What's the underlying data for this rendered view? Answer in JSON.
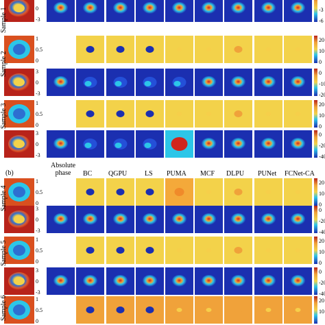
{
  "panel_b_label": "(b)",
  "column_headers": [
    "Absolute\nphase",
    "BC",
    "QGPU",
    "LS",
    "PUMA",
    "MCF",
    "DLPU",
    "PUNet",
    "FCNet-CA"
  ],
  "samples": [
    "Sample 1",
    "Sample 2",
    "Sample 3",
    "Sample 4",
    "Sample 5",
    "Sample 6"
  ],
  "left_ticks_amp": [
    "3",
    "0",
    "-3"
  ],
  "left_ticks_err": [
    "1",
    "0.5",
    "0"
  ],
  "right_ticks": [
    [
      "",
      "-3",
      "-6"
    ],
    [
      "20",
      "10",
      "0"
    ],
    [
      "0",
      "-10",
      "-20"
    ],
    [
      "20",
      "10",
      "0"
    ],
    [
      "0",
      "-20",
      "-40"
    ],
    [
      "20",
      "10",
      "0"
    ],
    [
      "0",
      "-20",
      "-40"
    ],
    [
      "20",
      "10",
      "0"
    ],
    [
      "0",
      "-20",
      "-40"
    ],
    [
      "20",
      "10",
      ""
    ]
  ],
  "colors": {
    "map_blue": "#1b2fb0",
    "map_cyan": "#2cc6e8",
    "map_yellow": "#f3d24a",
    "map_orange": "#f0a23a",
    "map_red": "#d1251c"
  }
}
